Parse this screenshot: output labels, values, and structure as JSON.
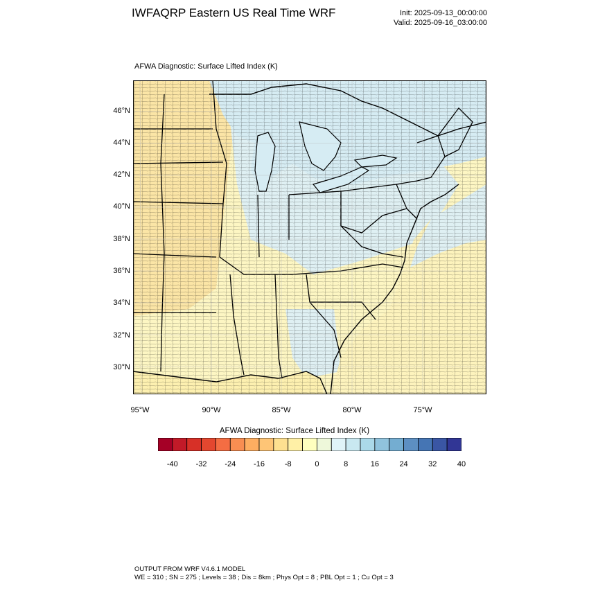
{
  "header": {
    "title": "IWFAQRP Eastern US Real Time WRF",
    "init": "Init: 2025-09-13_00:00:00",
    "valid": "Valid: 2025-09-16_03:00:00"
  },
  "plot": {
    "title": "AFWA Diagnostic: Surface Lifted Index   (K)"
  },
  "axes": {
    "lat_labels": [
      "46°N",
      "44°N",
      "42°N",
      "40°N",
      "38°N",
      "36°N",
      "34°N",
      "32°N",
      "30°N"
    ],
    "lon_labels": [
      "95°W",
      "90°W",
      "85°W",
      "80°W",
      "75°W"
    ]
  },
  "colorbar": {
    "title": "AFWA Diagnostic: Surface Lifted Index  (K)",
    "labels": [
      "-40",
      "-32",
      "-24",
      "-16",
      "-8",
      "0",
      "8",
      "16",
      "24",
      "32",
      "40"
    ],
    "colors": [
      "#a50026",
      "#c21a28",
      "#d73027",
      "#e4472f",
      "#f46d43",
      "#f88e52",
      "#fdae61",
      "#fec576",
      "#fee090",
      "#fff0a6",
      "#ffffbf",
      "#eef8da",
      "#e0f3f8",
      "#c9e8f1",
      "#abd9e9",
      "#90c3dd",
      "#74add1",
      "#5d8fc2",
      "#4575b4",
      "#3a56a4",
      "#313695"
    ]
  },
  "map_colors": {
    "water_blue": "#d6ecf3",
    "land_yellow": "#fdf6c3",
    "land_tan": "#fbe5a6",
    "land_lightblue": "#dff0f3",
    "ocean_yellow": "#fdf3bd",
    "gulf": "#fdf0b0",
    "border": "#000000"
  },
  "footer": {
    "line1": "OUTPUT FROM WRF V4.6.1 MODEL",
    "line2": "WE = 310 ; SN = 275 ; Levels = 38 ; Dis = 8km ; Phys Opt = 8 ; PBL Opt = 1 ; Cu Opt = 3"
  }
}
